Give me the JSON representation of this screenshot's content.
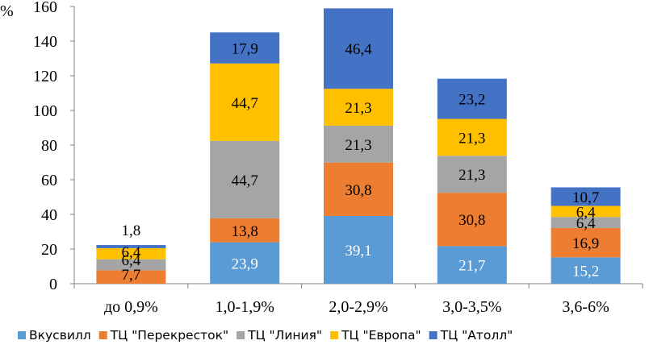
{
  "chart_data": {
    "type": "bar",
    "stacked": true,
    "ylabel": "%",
    "ylim": [
      0,
      160
    ],
    "yticks": [
      "0",
      "20",
      "40",
      "60",
      "80",
      "100",
      "120",
      "140",
      "160"
    ],
    "categories": [
      "до 0,9%",
      "1,0-1,9%",
      "2,0-2,9%",
      "3,0-3,5%",
      "3,6-6%"
    ],
    "series": [
      {
        "name": "Вкусвилл",
        "color": "#5B9BD5",
        "values": [
          0,
          23.9,
          39.1,
          21.7,
          15.2
        ],
        "labels": [
          "",
          "23,9",
          "39,1",
          "21,7",
          "15,2"
        ]
      },
      {
        "name": "ТЦ \"Перекресток\"",
        "color": "#ED7D31",
        "values": [
          7.7,
          13.8,
          30.8,
          30.8,
          16.9
        ],
        "labels": [
          "7,7",
          "13,8",
          "30,8",
          "30,8",
          "16,9"
        ]
      },
      {
        "name": "ТЦ \"Линия\"",
        "color": "#A5A5A5",
        "values": [
          6.4,
          44.7,
          21.3,
          21.3,
          6.4
        ],
        "labels": [
          "6,4",
          "44,7",
          "21,3",
          "21,3",
          "6,4"
        ]
      },
      {
        "name": "ТЦ \"Европа\"",
        "color": "#FFC000",
        "values": [
          6.4,
          44.7,
          21.3,
          21.3,
          6.4
        ],
        "labels": [
          "6,4",
          "44,7",
          "21,3",
          "21,3",
          "6,4"
        ]
      },
      {
        "name": "ТЦ \"Атолл\"",
        "color": "#4472C4",
        "values": [
          1.8,
          17.9,
          46.4,
          23.2,
          10.7
        ],
        "labels": [
          "1,8",
          "17,9",
          "46,4",
          "23,2",
          "10,7"
        ]
      }
    ],
    "legend_position": "bottom",
    "grid": false
  }
}
